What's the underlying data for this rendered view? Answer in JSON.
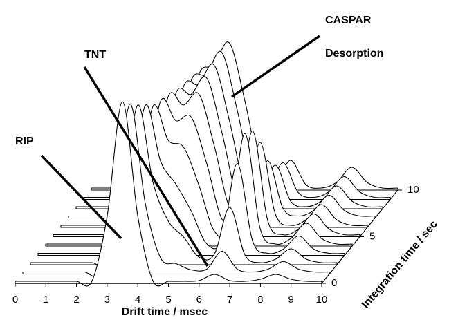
{
  "chart_data": {
    "type": "waterfall",
    "xlabel": "Drift time / msec",
    "zlabel": "Integration time / sec",
    "xlim": [
      0,
      10
    ],
    "xticks": [
      0,
      1,
      2,
      3,
      4,
      5,
      6,
      7,
      8,
      9,
      10
    ],
    "zlim": [
      0,
      10
    ],
    "zticks": [
      0,
      5,
      10
    ],
    "color": "#000000",
    "x": [
      0,
      0.5,
      1,
      1.5,
      2,
      2.5,
      3,
      3.5,
      4,
      4.5,
      5,
      5.5,
      6,
      6.5,
      7,
      7.5,
      8,
      8.5,
      9,
      9.5,
      10
    ],
    "z": [
      0,
      1,
      2,
      3,
      4,
      5,
      6,
      7,
      8,
      9,
      10
    ],
    "series": [
      {
        "values": [
          3,
          3,
          3,
          3,
          3,
          3,
          97,
          263,
          97,
          3,
          3,
          3,
          4,
          13,
          4,
          3,
          6,
          13,
          6,
          3,
          3
        ]
      },
      {
        "values": [
          3,
          3,
          3,
          3,
          3,
          3,
          89,
          246,
          101,
          23,
          15,
          6,
          7,
          33,
          7,
          3,
          7,
          18,
          7,
          3,
          3
        ]
      },
      {
        "values": [
          3,
          3,
          3,
          3,
          3,
          3,
          82,
          231,
          119,
          63,
          40,
          11,
          15,
          83,
          14,
          3,
          8,
          23,
          8,
          3,
          3
        ]
      },
      {
        "values": [
          3,
          3,
          3,
          3,
          3,
          3,
          75,
          217,
          136,
          103,
          64,
          17,
          22,
          133,
          21,
          3,
          9,
          28,
          9,
          3,
          3
        ]
      },
      {
        "values": [
          3,
          3,
          3,
          3,
          3,
          3,
          68,
          202,
          153,
          143,
          88,
          22,
          26,
          163,
          25,
          3,
          11,
          33,
          11,
          3,
          3
        ]
      },
      {
        "values": [
          3,
          3,
          3,
          3,
          3,
          3,
          64,
          196,
          168,
          173,
          107,
          26,
          25,
          153,
          23,
          3,
          11,
          33,
          11,
          3,
          3
        ]
      },
      {
        "values": [
          3,
          3,
          3,
          3,
          3,
          3,
          61,
          189,
          177,
          193,
          119,
          29,
          21,
          123,
          19,
          3,
          11,
          33,
          11,
          3,
          3
        ]
      },
      {
        "values": [
          3,
          3,
          3,
          3,
          3,
          3,
          57,
          180,
          179,
          203,
          125,
          30,
          16,
          83,
          14,
          3,
          11,
          33,
          11,
          3,
          3
        ]
      },
      {
        "values": [
          3,
          3,
          3,
          3,
          3,
          3,
          55,
          176,
          180,
          208,
          128,
          31,
          13,
          63,
          11,
          3,
          11,
          33,
          11,
          3,
          3
        ]
      },
      {
        "values": [
          3,
          3,
          3,
          3,
          3,
          3,
          53,
          171,
          181,
          213,
          131,
          31,
          12,
          53,
          10,
          3,
          11,
          33,
          11,
          3,
          3
        ]
      },
      {
        "values": [
          3,
          3,
          3,
          3,
          3,
          3,
          52,
          166,
          180,
          213,
          131,
          31,
          10,
          43,
          8,
          3,
          11,
          33,
          11,
          3,
          3
        ]
      }
    ],
    "annotations": [
      {
        "text": "RIP"
      },
      {
        "text": "TNT"
      },
      {
        "text": "CASPAR"
      },
      {
        "text": "Desorption"
      }
    ]
  }
}
